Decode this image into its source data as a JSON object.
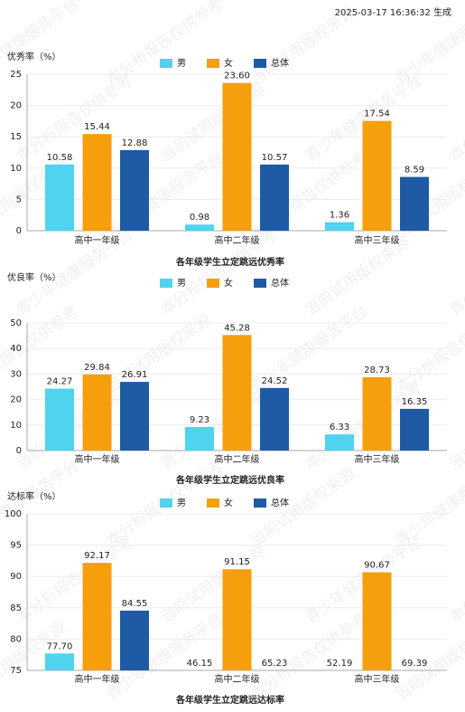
{
  "timestamp": "2025-03-17 16:36:32 生成",
  "watermark": [
    "青少年健康服务平台",
    "本分析报告仅供参考",
    "当前试用版权来源"
  ],
  "chart_data": [
    {
      "type": "bar",
      "title": "各年级学生立定跳远优秀率",
      "y_label": "优秀率（%）",
      "categories": [
        "高中一年级",
        "高中二年级",
        "高中三年级"
      ],
      "series": [
        {
          "name": "男",
          "color": "#4fd3ee",
          "values": [
            10.58,
            0.98,
            1.36
          ],
          "value_labels": [
            "10.58",
            "0.98",
            "1.36"
          ]
        },
        {
          "name": "女",
          "color": "#f59f0c",
          "values": [
            15.44,
            23.6,
            17.54
          ],
          "value_labels": [
            "15.44",
            "23.60",
            "17.54"
          ]
        },
        {
          "name": "总体",
          "color": "#1f5aa5",
          "values": [
            12.88,
            10.57,
            8.59
          ],
          "value_labels": [
            "12.88",
            "10.57",
            "8.59"
          ]
        }
      ],
      "ylim": [
        0,
        25
      ],
      "yticks": [
        0,
        5,
        10,
        15,
        20,
        25
      ],
      "legend": "top"
    },
    {
      "type": "bar",
      "title": "各年级学生立定跳远优良率",
      "y_label": "优良率（%）",
      "categories": [
        "高中一年级",
        "高中二年级",
        "高中三年级"
      ],
      "series": [
        {
          "name": "男",
          "color": "#4fd3ee",
          "values": [
            24.27,
            9.23,
            6.33
          ],
          "value_labels": [
            "24.27",
            "9.23",
            "6.33"
          ]
        },
        {
          "name": "女",
          "color": "#f59f0c",
          "values": [
            29.84,
            45.28,
            28.73
          ],
          "value_labels": [
            "29.84",
            "45.28",
            "28.73"
          ]
        },
        {
          "name": "总体",
          "color": "#1f5aa5",
          "values": [
            26.91,
            24.52,
            16.35
          ],
          "value_labels": [
            "26.91",
            "24.52",
            "16.35"
          ]
        }
      ],
      "ylim": [
        0,
        50
      ],
      "yticks": [
        0,
        10,
        20,
        30,
        40,
        50
      ],
      "legend": "top"
    },
    {
      "type": "bar",
      "title": "各年级学生立定跳远达标率",
      "y_label": "达标率（%）",
      "categories": [
        "高中一年级",
        "高中二年级",
        "高中三年级"
      ],
      "series": [
        {
          "name": "男",
          "color": "#4fd3ee",
          "values": [
            77.7,
            46.15,
            52.19
          ],
          "value_labels": [
            "77.70",
            "46.15",
            "52.19"
          ]
        },
        {
          "name": "女",
          "color": "#f59f0c",
          "values": [
            92.17,
            91.15,
            90.67
          ],
          "value_labels": [
            "92.17",
            "91.15",
            "90.67"
          ]
        },
        {
          "name": "总体",
          "color": "#1f5aa5",
          "values": [
            84.55,
            65.23,
            69.39
          ],
          "value_labels": [
            "84.55",
            "65.23",
            "69.39"
          ]
        }
      ],
      "ylim": [
        75,
        100
      ],
      "yticks": [
        75,
        80,
        85,
        90,
        95,
        100
      ],
      "legend": "top"
    }
  ]
}
